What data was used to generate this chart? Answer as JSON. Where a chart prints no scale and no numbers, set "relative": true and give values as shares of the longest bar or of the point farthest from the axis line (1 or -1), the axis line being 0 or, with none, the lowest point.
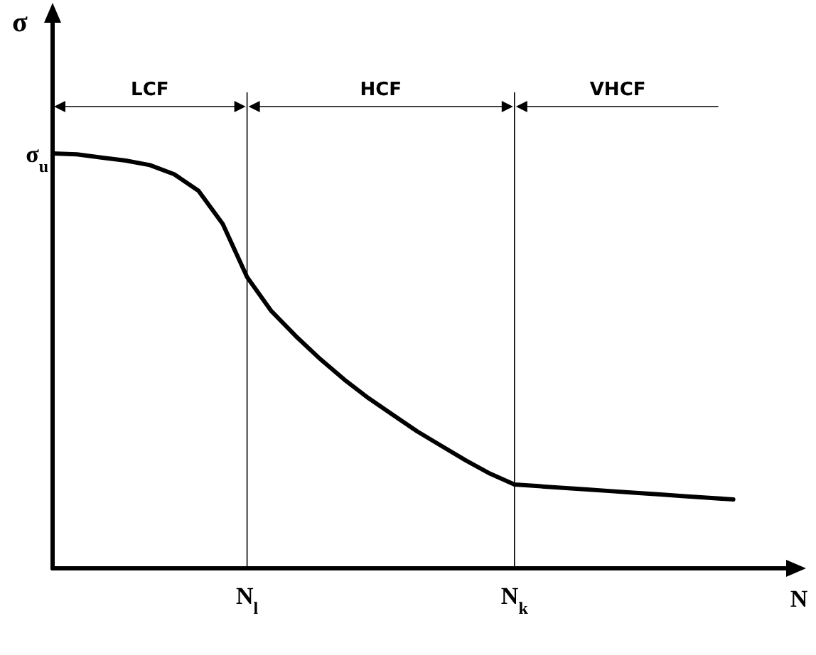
{
  "chart_data": {
    "type": "line",
    "relative": true,
    "xlabel": "N",
    "ylabel": "σ",
    "categories": [
      null,
      null,
      null,
      null,
      null,
      null,
      null,
      null,
      "N$_{l}$",
      null,
      null,
      null,
      null,
      null,
      null,
      null,
      null,
      null,
      null,
      "N$_{k}$",
      null,
      null,
      null,
      null,
      null,
      null,
      null,
      null,
      null
    ],
    "series": [
      {
        "color": "#000000",
        "values": [
          1,
          0.998,
          0.99,
          0.983,
          0.972,
          0.95,
          0.91,
          0.83,
          0.702,
          0.62,
          0.56,
          0.505,
          0.455,
          0.41,
          0.37,
          0.33,
          0.295,
          0.26,
          0.228,
          0.202,
          0.198,
          0.194,
          0.19,
          0.186,
          0.182,
          0.178,
          0.174,
          0.17,
          0.166
        ]
      }
    ],
    "ref_lines": [
      {
        "axis": "x",
        "value": "N$_{l}$",
        "color": "#000000",
        "line_style": "solid"
      },
      {
        "axis": "x",
        "value": "N$_{k}$",
        "color": "#000000",
        "line_style": "solid"
      }
    ],
    "annotations": [
      "σ$_{u}$",
      "LCF",
      "HCF",
      "VHCF"
    ],
    "marker": "none",
    "line_style": "solid"
  }
}
